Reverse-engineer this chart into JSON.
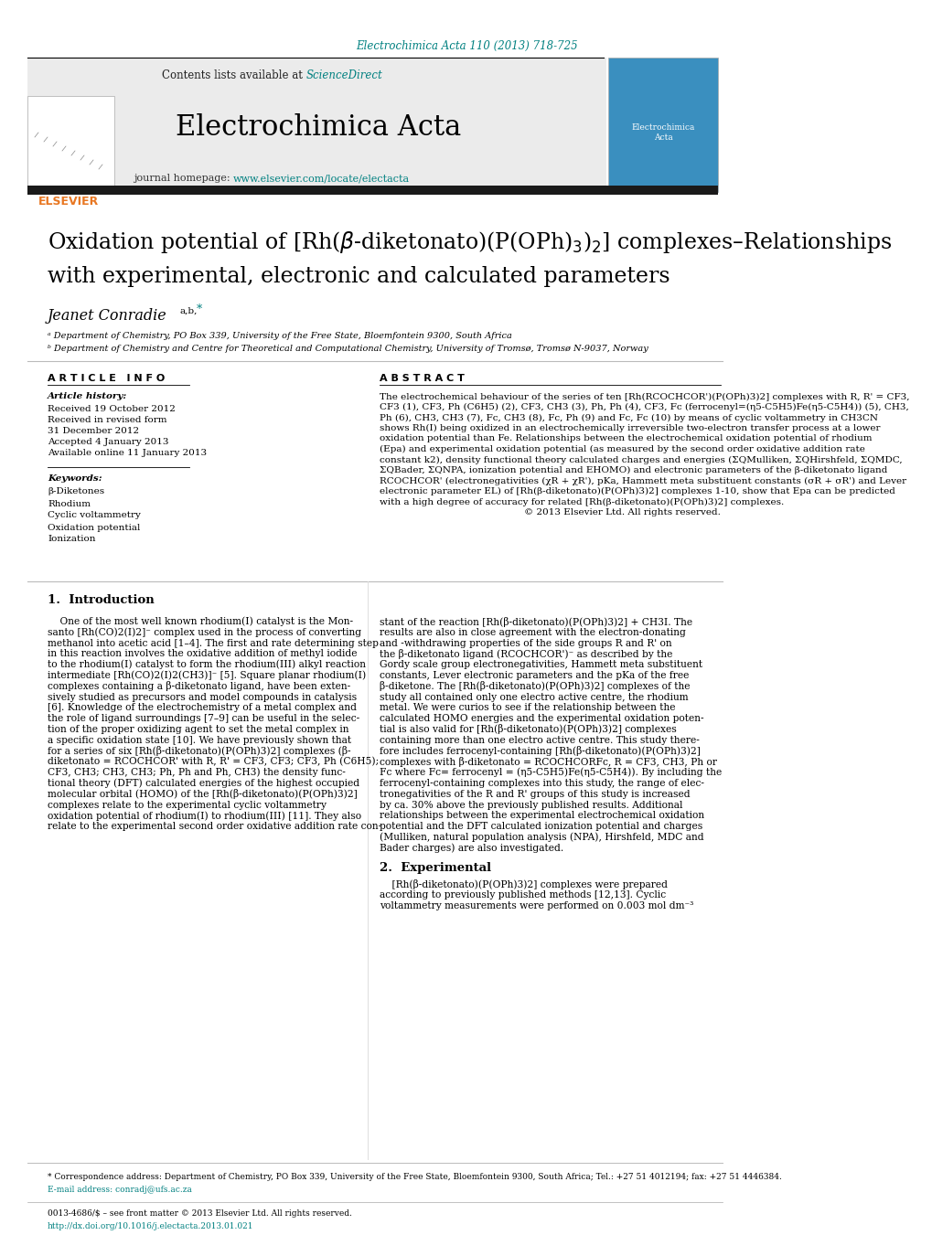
{
  "journal_ref": "Electrochimica Acta 110 (2013) 718-725",
  "journal_name": "Electrochimica Acta",
  "contents_text": "Contents lists available at ",
  "science_direct": "ScienceDirect",
  "journal_homepage": "journal homepage: ",
  "homepage_url": "www.elsevier.com/locate/electacta",
  "title_line1": "Oxidation potential of [Rh(β-diketonato)(P(OPh)₃)₂] complexes–Relationships",
  "title_line2": "with experimental, electronic and calculated parameters",
  "author": "Jeanet Conradie",
  "affil_a": "ᵃ Department of Chemistry, PO Box 339, University of the Free State, Bloemfontein 9300, South Africa",
  "affil_b": "ᵇ Department of Chemistry and Centre for Theoretical and Computational Chemistry, University of Tromsø, Tromsø N-9037, Norway",
  "article_info_header": "A R T I C L E   I N F O",
  "abstract_header": "A B S T R A C T",
  "article_history": "Article history:",
  "received": "Received 19 October 2012",
  "received_revised": "Received in revised form",
  "revised_date": "31 December 2012",
  "accepted": "Accepted 4 January 2013",
  "available": "Available online 11 January 2013",
  "keywords_header": "Keywords:",
  "keywords": [
    "β-Diketones",
    "Rhodium",
    "Cyclic voltammetry",
    "Oxidation potential",
    "Ionization"
  ],
  "intro_header": "1.  Introduction",
  "section2_header": "2.  Experimental",
  "section2_text": "[Rh(β-diketonato)(P(OPh)₃)₂] complexes were prepared according to previously published methods [12,13]. Cyclic voltammetry measurements were performed on 0.003 mol dm⁻³",
  "footnote_star": "* Correspondence address: Department of Chemistry, PO Box 339, University of the Free State, Bloemfontein 9300, South Africa; Tel.: +27 51 4012194; fax: +27 51 4446384.",
  "footnote_email": "E-mail address: conradj@ufs.ac.za",
  "issn_text": "0013-4686/$ – see front matter © 2013 Elsevier Ltd. All rights reserved.",
  "doi_text": "http://dx.doi.org/10.1016/j.electacta.2013.01.021",
  "bg_color": "#ffffff",
  "teal_color": "#008080",
  "elsevier_orange": "#e87722",
  "abstract_lines": [
    "The electrochemical behaviour of the series of ten [Rh(RCOCHCOR')(P(OPh)3)2] complexes with R, R' = CF3,",
    "CF3 (1), CF3, Ph (C6H5) (2), CF3, CH3 (3), Ph, Ph (4), CF3, Fc (ferrocenyl=(η5-C5H5)Fe(η5-C5H4)) (5), CH3,",
    "Ph (6), CH3, CH3 (7), Fc, CH3 (8), Fc, Ph (9) and Fc, Fc (10) by means of cyclic voltammetry in CH3CN",
    "shows Rh(I) being oxidized in an electrochemically irreversible two-electron transfer process at a lower",
    "oxidation potential than Fe. Relationships between the electrochemical oxidation potential of rhodium",
    "(Epa) and experimental oxidation potential (as measured by the second order oxidative addition rate",
    "constant k2), density functional theory calculated charges and energies (ΣQMulliken, ΣQHirshfeld, ΣQMDC,",
    "ΣQBader, ΣQNPA, ionization potential and EHOMO) and electronic parameters of the β-diketonato ligand",
    "RCOCHCOR' (electronegativities (χR + χR'), pKa, Hammett meta substituent constants (σR + σR') and Lever",
    "electronic parameter EL) of [Rh(β-diketonato)(P(OPh)3)2] complexes 1-10, show that Epa can be predicted",
    "with a high degree of accuracy for related [Rh(β-diketonato)(P(OPh)3)2] complexes.",
    "© 2013 Elsevier Ltd. All rights reserved."
  ],
  "intro_col1_lines": [
    "    One of the most well known rhodium(I) catalyst is the Mon-",
    "santo [Rh(CO)2(I)2]⁻ complex used in the process of converting",
    "methanol into acetic acid [1–4]. The first and rate determining step",
    "in this reaction involves the oxidative addition of methyl iodide",
    "to the rhodium(I) catalyst to form the rhodium(III) alkyl reaction",
    "intermediate [Rh(CO)2(I)2(CH3)]⁻ [5]. Square planar rhodium(I)",
    "complexes containing a β-diketonato ligand, have been exten-",
    "sively studied as precursors and model compounds in catalysis",
    "[6]. Knowledge of the electrochemistry of a metal complex and",
    "the role of ligand surroundings [7–9] can be useful in the selec-",
    "tion of the proper oxidizing agent to set the metal complex in",
    "a specific oxidation state [10]. We have previously shown that",
    "for a series of six [Rh(β-diketonato)(P(OPh)3)2] complexes (β-",
    "diketonato = RCOCHCOR' with R, R' = CF3, CF3; CF3, Ph (C6H5);",
    "CF3, CH3; CH3, CH3; Ph, Ph and Ph, CH3) the density func-",
    "tional theory (DFT) calculated energies of the highest occupied",
    "molecular orbital (HOMO) of the [Rh(β-diketonato)(P(OPh)3)2]",
    "complexes relate to the experimental cyclic voltammetry",
    "oxidation potential of rhodium(I) to rhodium(III) [11]. They also",
    "relate to the experimental second order oxidative addition rate con-"
  ],
  "intro_col2_lines": [
    "stant of the reaction [Rh(β-diketonato)(P(OPh)3)2] + CH3I. The",
    "results are also in close agreement with the electron-donating",
    "and -withdrawing properties of the side groups R and R' on",
    "the β-diketonato ligand (RCOCHCOR')⁻ as described by the",
    "Gordy scale group electronegativities, Hammett meta substituent",
    "constants, Lever electronic parameters and the pKa of the free",
    "β-diketone. The [Rh(β-diketonato)(P(OPh)3)2] complexes of the",
    "study all contained only one electro active centre, the rhodium",
    "metal. We were curios to see if the relationship between the",
    "calculated HOMO energies and the experimental oxidation poten-",
    "tial is also valid for [Rh(β-diketonato)(P(OPh)3)2] complexes",
    "containing more than one electro active centre. This study there-",
    "fore includes ferrocenyl-containing [Rh(β-diketonato)(P(OPh)3)2]",
    "complexes with β-diketonato = RCOCHCORFc, R = CF3, CH3, Ph or",
    "Fc where Fc= ferrocenyl = (η5-C5H5)Fe(η5-C5H4)). By including the",
    "ferrocenyl-containing complexes into this study, the range of elec-",
    "tronegativities of the R and R' groups of this study is increased",
    "by ca. 30% above the previously published results. Additional",
    "relationships between the experimental electrochemical oxidation",
    "potential and the DFT calculated ionization potential and charges",
    "(Mulliken, natural population analysis (NPA), Hirshfeld, MDC and",
    "Bader charges) are also investigated."
  ],
  "sec2_col2_lines": [
    "    [Rh(β-diketonato)(P(OPh)3)2] complexes were prepared",
    "according to previously published methods [12,13]. Cyclic",
    "voltammetry measurements were performed on 0.003 mol dm⁻³"
  ]
}
